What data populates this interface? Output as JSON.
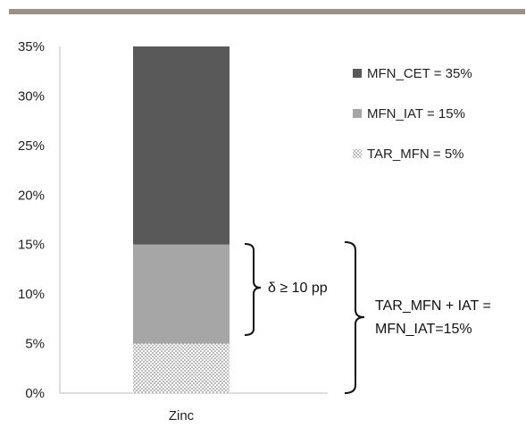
{
  "chart_data": {
    "type": "bar",
    "stacked": true,
    "categories": [
      "Zinc"
    ],
    "series": [
      {
        "name": "TAR_MFN = 5%",
        "values": [
          5
        ],
        "color": "#e6e6e6",
        "pattern": "dotted"
      },
      {
        "name": "MFN_IAT = 15%",
        "values": [
          10
        ],
        "color": "#a6a6a6"
      },
      {
        "name": "MFN_CET = 35%",
        "values": [
          20
        ],
        "color": "#595959"
      }
    ],
    "legend_order": [
      "MFN_CET = 35%",
      "MFN_IAT = 15%",
      "TAR_MFN = 5%"
    ],
    "ylim": [
      0,
      35
    ],
    "yticks": [
      "0%",
      "5%",
      "10%",
      "15%",
      "20%",
      "25%",
      "30%",
      "35%"
    ],
    "ytick_values": [
      0,
      5,
      10,
      15,
      20,
      25,
      30,
      35
    ],
    "grid": false,
    "legend_position": "right",
    "annotations": {
      "delta": "δ ≥ 10 pp",
      "sum_line1": "TAR_MFN + IAT =",
      "sum_line2": "MFN_IAT=15%"
    },
    "top_rule_color": "#9b9088"
  }
}
